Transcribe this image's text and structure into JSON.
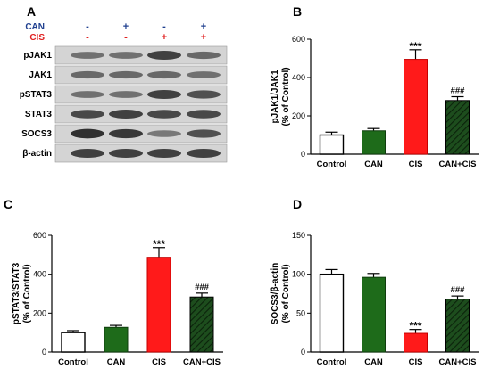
{
  "colors": {
    "control": "#ffffff",
    "can": "#1e6b1a",
    "cis": "#ff1a1a",
    "can_cis": "#1d4d1d",
    "can_label": "#1f3f8f",
    "cis_label": "#e02020"
  },
  "panel_a": {
    "letter": "A",
    "treatments": [
      {
        "label": "CAN",
        "signs": [
          "-",
          "+",
          "-",
          "+"
        ]
      },
      {
        "label": "CIS",
        "signs": [
          "-",
          "-",
          "+",
          "+"
        ]
      }
    ],
    "blots": [
      "pJAK1",
      "JAK1",
      "pSTAT3",
      "STAT3",
      "SOCS3",
      "β-actin"
    ]
  },
  "chart_data": [
    {
      "panel": "B",
      "type": "bar",
      "categories": [
        "Control",
        "CAN",
        "CIS",
        "CAN+CIS"
      ],
      "values": [
        100,
        122,
        495,
        280
      ],
      "errors": [
        15,
        12,
        50,
        20
      ],
      "ylabel": [
        "pJAK1/JAK1",
        "(% of Control)"
      ],
      "ylim": [
        0,
        600
      ],
      "yticks": [
        "0",
        "200",
        "400",
        "600"
      ],
      "annotations": [
        "",
        "",
        "***",
        "###"
      ]
    },
    {
      "panel": "C",
      "type": "bar",
      "categories": [
        "Control",
        "CAN",
        "CIS",
        "CAN+CIS"
      ],
      "values": [
        100,
        127,
        487,
        283
      ],
      "errors": [
        10,
        10,
        50,
        20
      ],
      "ylabel": [
        "pSTAT3/STAT3",
        "(% of Control)"
      ],
      "ylim": [
        0,
        600
      ],
      "yticks": [
        "0",
        "200",
        "400",
        "600"
      ],
      "annotations": [
        "",
        "",
        "***",
        "###"
      ]
    },
    {
      "panel": "D",
      "type": "bar",
      "categories": [
        "Control",
        "CAN",
        "CIS",
        "CAN+CIS"
      ],
      "values": [
        100,
        96,
        24,
        68
      ],
      "errors": [
        6,
        5,
        5,
        4
      ],
      "ylabel": [
        "SOCS3/β-actin",
        "(% of Control)"
      ],
      "ylim": [
        0,
        150
      ],
      "yticks": [
        "0",
        "50",
        "100",
        "150"
      ],
      "annotations": [
        "",
        "",
        "***",
        "###"
      ]
    }
  ]
}
